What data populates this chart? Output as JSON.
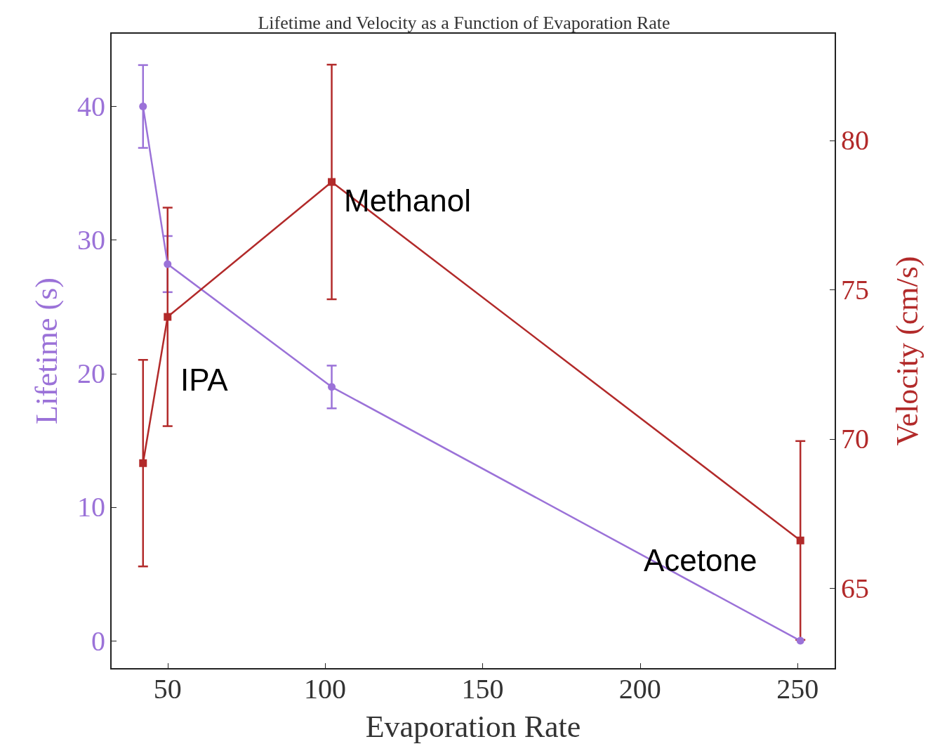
{
  "chart_data": {
    "type": "line",
    "title": "Lifetime and Velocity as a Function of Evaporation Rate",
    "xlabel": "Evaporation Rate",
    "ylabel": "Lifetime (s)",
    "y2label": "Velocity (cm/s)",
    "xlim": [
      32,
      262
    ],
    "xticks": [
      50,
      100,
      150,
      200,
      250
    ],
    "ylim": [
      -2.1,
      45.5
    ],
    "yticks": [
      0,
      10,
      20,
      30,
      40
    ],
    "y2lim": [
      62.3,
      83.6
    ],
    "y2ticks": [
      65,
      70,
      75,
      80
    ],
    "grid": false,
    "line_style": "solid",
    "series": [
      {
        "x": [
          42.2,
          50,
          102.1,
          250.9
        ],
        "values": [
          40,
          28.2,
          19,
          0
        ],
        "errors": [
          3.1,
          2.1,
          1.6,
          null
        ],
        "color": "#9b72d8",
        "marker": "circle"
      },
      {
        "x": [
          42.2,
          50,
          102.1,
          250.9
        ],
        "values": [
          69.19,
          74.09,
          78.61,
          66.6
        ],
        "errors": [
          3.46,
          3.66,
          3.93,
          3.33
        ],
        "color": "#b22a2a",
        "marker": "square",
        "axis": "y2"
      }
    ],
    "annotations": [
      "Methanol",
      "IPA",
      "Acetone"
    ]
  }
}
